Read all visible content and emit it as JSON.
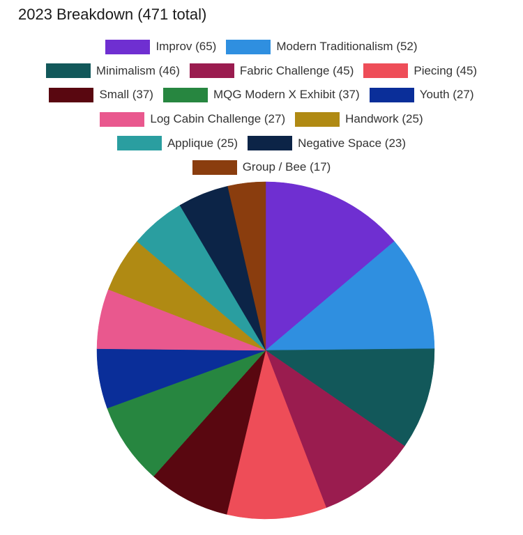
{
  "chart_data": {
    "type": "pie",
    "title": "2023 Breakdown (471 total)",
    "legend_placement": "top",
    "slices": [
      {
        "label": "Improv (65)",
        "value": 65,
        "color": "#6f2fd1"
      },
      {
        "label": "Modern Traditionalism (52)",
        "value": 52,
        "color": "#2f8fe0"
      },
      {
        "label": "Minimalism (46)",
        "value": 46,
        "color": "#12585a"
      },
      {
        "label": "Fabric Challenge (45)",
        "value": 45,
        "color": "#9a1c4f"
      },
      {
        "label": "Piecing (45)",
        "value": 45,
        "color": "#ee4d58"
      },
      {
        "label": "Small (37)",
        "value": 37,
        "color": "#590710"
      },
      {
        "label": "MQG Modern X Exhibit (37)",
        "value": 37,
        "color": "#278640"
      },
      {
        "label": "Youth (27)",
        "value": 27,
        "color": "#0a2e99"
      },
      {
        "label": "Log Cabin Challenge (27)",
        "value": 27,
        "color": "#e9588e"
      },
      {
        "label": "Handwork (25)",
        "value": 25,
        "color": "#b08a13"
      },
      {
        "label": "Applique (25)",
        "value": 25,
        "color": "#2a9ea0"
      },
      {
        "label": "Negative Space (23)",
        "value": 23,
        "color": "#0c2447"
      },
      {
        "label": "Group / Bee (17)",
        "value": 17,
        "color": "#8a3d0e"
      }
    ]
  }
}
